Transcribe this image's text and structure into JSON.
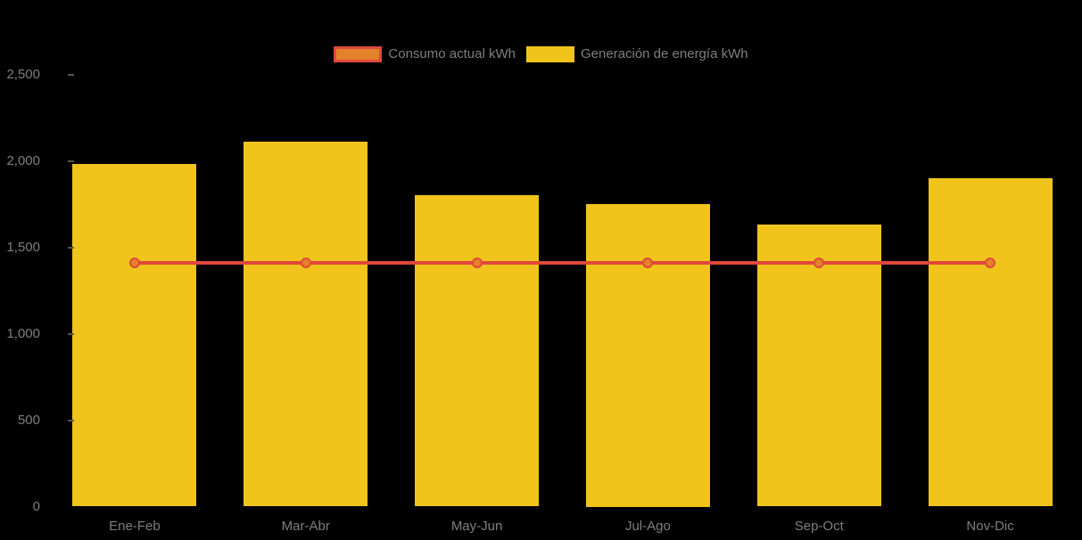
{
  "chart_data": {
    "type": "bar",
    "categories": [
      "Ene-Feb",
      "Mar-Abr",
      "May-Jun",
      "Jul-Ago",
      "Sep-Oct",
      "Nov-Dic"
    ],
    "series": [
      {
        "name": "Consumo actual kWh",
        "type": "line",
        "values": [
          1410,
          1410,
          1410,
          1410,
          1410,
          1410
        ],
        "color_stroke": "#E0483A",
        "color_fill": "#E2832C"
      },
      {
        "name": "Generación de energía kWh",
        "type": "bar",
        "values": [
          1980,
          2110,
          1800,
          1750,
          1630,
          1900
        ],
        "color": "#F0C41B"
      }
    ],
    "title": "",
    "xlabel": "",
    "ylabel": "",
    "ylim": [
      0,
      2500
    ],
    "yticks": [
      0,
      500,
      1000,
      1500,
      2000,
      2500
    ],
    "ytick_labels": [
      "0",
      "500",
      "1,000",
      "1,500",
      "2,000",
      "2,500"
    ],
    "grid": false,
    "legend_position": "top",
    "background_color": "#000000",
    "text_color": "#7F7F7F"
  }
}
